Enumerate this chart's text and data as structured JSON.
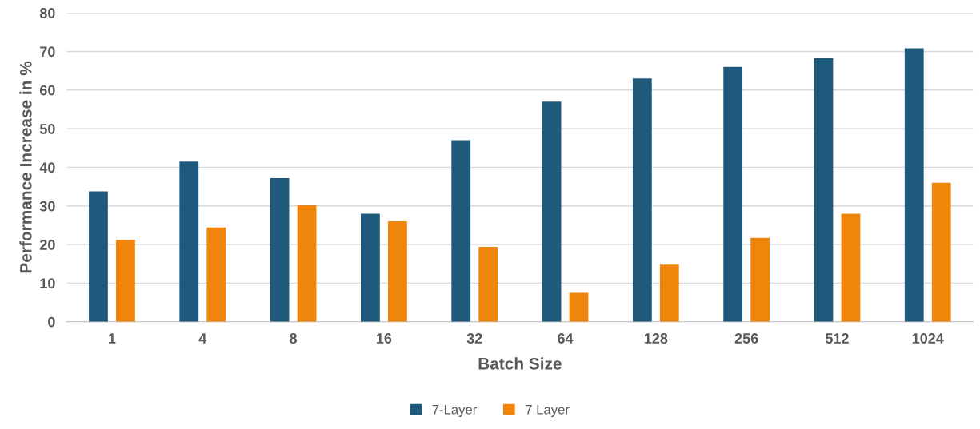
{
  "chart_data": {
    "type": "bar",
    "xlabel": "Batch Size",
    "ylabel": "Performance Increase in %",
    "categories": [
      "1",
      "4",
      "8",
      "16",
      "32",
      "64",
      "128",
      "256",
      "512",
      "1024"
    ],
    "series": [
      {
        "name": "7-Layer",
        "color": "#1f5a7d",
        "values": [
          33.8,
          41.5,
          37.2,
          28,
          47,
          57,
          63,
          66,
          68.3,
          70.8
        ]
      },
      {
        "name": "7 Layer",
        "color": "#f0850c",
        "values": [
          21.2,
          24.4,
          30.2,
          26,
          19.4,
          7.5,
          14.8,
          21.7,
          28,
          36
        ]
      }
    ],
    "ylim": [
      0,
      80
    ],
    "yticks": [
      0,
      10,
      20,
      30,
      40,
      50,
      60,
      70,
      80
    ],
    "grid": "y",
    "legend": "bottom"
  }
}
